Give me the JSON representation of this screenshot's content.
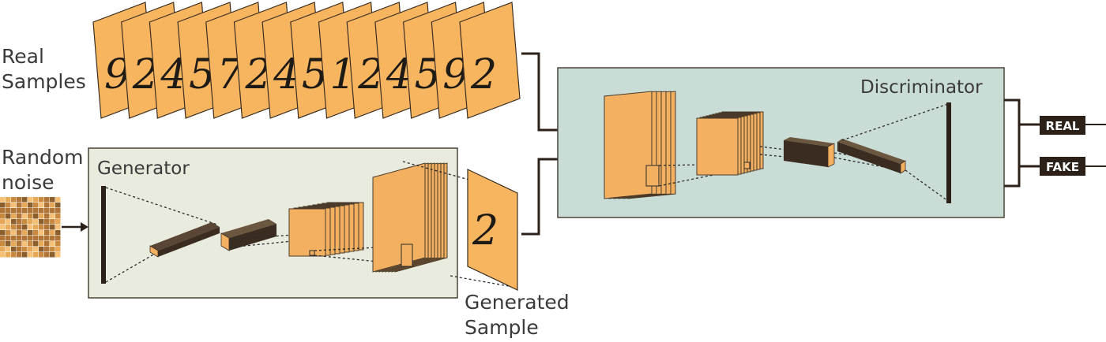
{
  "labels": {
    "real_samples_line1": "Real",
    "real_samples_line2": "Samples",
    "random_noise_line1": "Random",
    "random_noise_line2": "noise",
    "generator": "Generator",
    "discriminator": "Discriminator",
    "generated_sample_line1": "Generated",
    "generated_sample_line2": "Sample"
  },
  "outputs": {
    "real": "REAL",
    "fake": "FAKE"
  },
  "real_sample_digits": [
    "9",
    "2",
    "4",
    "5",
    "7",
    "2",
    "4",
    "5",
    "1",
    "2",
    "4",
    "5",
    "9",
    "2"
  ],
  "generated_digit": "2",
  "colors": {
    "card_orange": "#f7b55f",
    "panel_fill": "#c9dcd6",
    "generator_fill": "#e9ebde",
    "dark_ink": "#2b2118"
  }
}
